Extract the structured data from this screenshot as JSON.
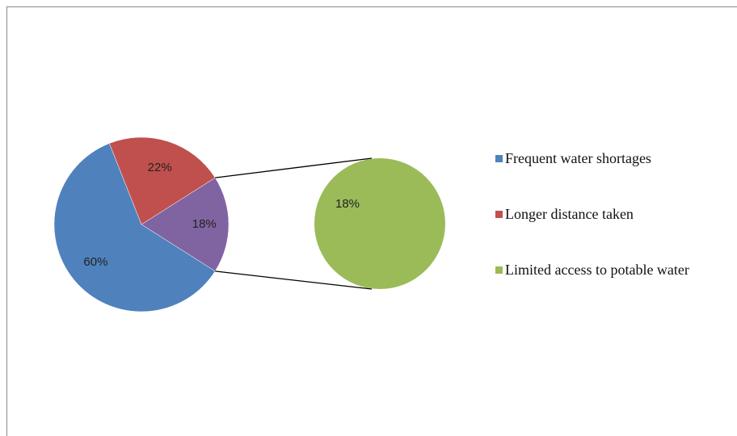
{
  "chart_data": {
    "type": "pie",
    "categories": [
      "Frequent water shortages",
      "Longer distance taken",
      "Limited access to potable water"
    ],
    "values": [
      60,
      22,
      18
    ],
    "value_labels": [
      "60%",
      "22%",
      "18%"
    ],
    "colors": [
      "#4f81bd",
      "#c0504d",
      "#9bbb59"
    ],
    "other_color": "#8064a2",
    "secondary_count": 1,
    "legend": "right"
  }
}
